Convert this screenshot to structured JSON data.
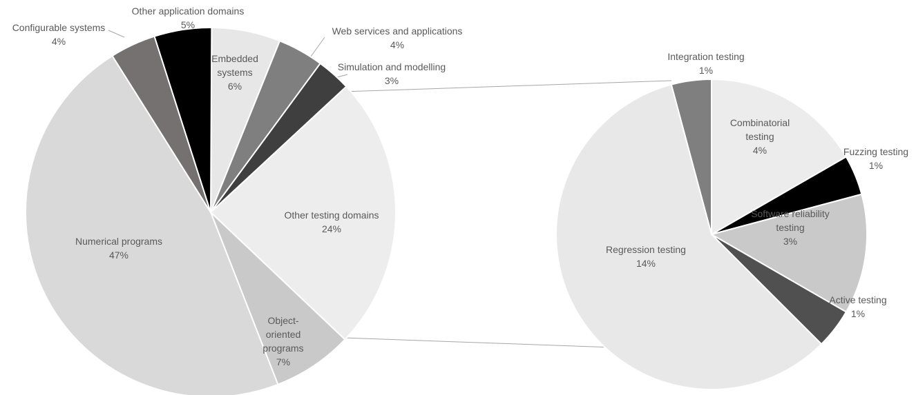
{
  "chart_data": [
    {
      "type": "pie",
      "categories": [
        "Embedded systems",
        "Web services and applications",
        "Simulation and modelling",
        "Other testing domains",
        "Object-oriented programs",
        "Numerical programs",
        "Configurable systems",
        "Other application domains"
      ],
      "values": [
        6,
        4,
        3,
        24,
        7,
        47,
        4,
        5
      ],
      "value_labels": [
        "6%",
        "4%",
        "3%",
        "24%",
        "7%",
        "47%",
        "4%",
        "5%"
      ],
      "colors": [
        "#e7e7e7",
        "#7f7f7f",
        "#3f3f3f",
        "#ededed",
        "#c9c9c9",
        "#d9d9d9",
        "#767171",
        "#000000"
      ]
    },
    {
      "type": "pie",
      "categories": [
        "Integration testing",
        "Combinatorial testing",
        "Fuzzing testing",
        "Software reliability testing",
        "Active testing",
        "Regression testing"
      ],
      "values": [
        1,
        4,
        1,
        3,
        1,
        14
      ],
      "value_labels": [
        "1%",
        "4%",
        "1%",
        "3%",
        "1%",
        "14%"
      ],
      "colors": [
        "#7f7f7f",
        "#ececec",
        "#000000",
        "#c9c9c9",
        "#505050",
        "#e8e8e8"
      ]
    }
  ]
}
